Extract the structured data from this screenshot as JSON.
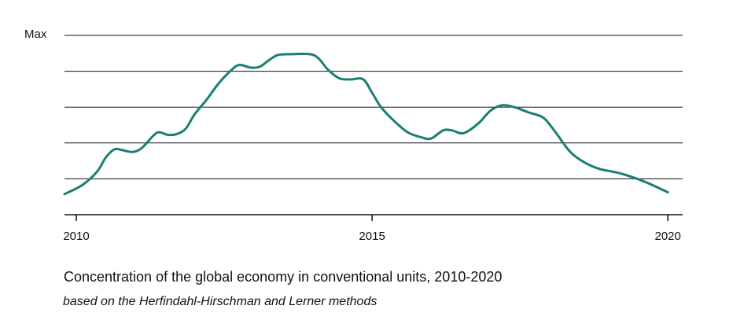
{
  "caption": {
    "title": "Concentration of the global economy in conventional units, 2010-2020",
    "subtitle": "based on the Herfindahl-Hirschman and Lerner methods"
  },
  "chart_data": {
    "type": "line",
    "title": "Concentration of the global economy in conventional units, 2010-2020",
    "subtitle": "based on the Herfindahl-Hirschman and Lerner methods",
    "xlabel": "",
    "ylabel": "",
    "xlim": [
      2009.8,
      2020.25
    ],
    "ylim": [
      0,
      100
    ],
    "x_ticks": [
      2010,
      2015,
      2020
    ],
    "x_tick_labels": [
      "2010",
      "2015",
      "2020"
    ],
    "y_ticks": [
      20,
      40,
      60,
      80,
      100
    ],
    "y_tick_labels": [
      "",
      "",
      "",
      "",
      "Max"
    ],
    "grid": "horizontal",
    "line_color": "#1a7f72",
    "series": [
      {
        "points": [
          [
            2009.8,
            11.5
          ],
          [
            2010.1,
            16.5
          ],
          [
            2010.35,
            24
          ],
          [
            2010.5,
            32
          ],
          [
            2010.65,
            36.5
          ],
          [
            2010.78,
            36
          ],
          [
            2010.95,
            35
          ],
          [
            2011.1,
            37
          ],
          [
            2011.3,
            44
          ],
          [
            2011.4,
            46
          ],
          [
            2011.55,
            44.5
          ],
          [
            2011.7,
            45
          ],
          [
            2011.85,
            48
          ],
          [
            2012.0,
            56
          ],
          [
            2012.2,
            64
          ],
          [
            2012.4,
            73
          ],
          [
            2012.6,
            80
          ],
          [
            2012.75,
            83.5
          ],
          [
            2012.95,
            82
          ],
          [
            2013.1,
            82.5
          ],
          [
            2013.25,
            86
          ],
          [
            2013.4,
            89
          ],
          [
            2013.6,
            89.5
          ],
          [
            2013.95,
            89.5
          ],
          [
            2014.1,
            87
          ],
          [
            2014.25,
            81
          ],
          [
            2014.45,
            76
          ],
          [
            2014.65,
            75.5
          ],
          [
            2014.85,
            75.5
          ],
          [
            2015.0,
            68
          ],
          [
            2015.15,
            60
          ],
          [
            2015.35,
            53
          ],
          [
            2015.6,
            46
          ],
          [
            2015.85,
            43
          ],
          [
            2016.0,
            42.5
          ],
          [
            2016.2,
            47
          ],
          [
            2016.35,
            47
          ],
          [
            2016.55,
            45.5
          ],
          [
            2016.8,
            51
          ],
          [
            2017.0,
            58
          ],
          [
            2017.2,
            61
          ],
          [
            2017.4,
            60
          ],
          [
            2017.65,
            57
          ],
          [
            2017.9,
            54
          ],
          [
            2018.1,
            46
          ],
          [
            2018.35,
            35
          ],
          [
            2018.6,
            29
          ],
          [
            2018.85,
            25.5
          ],
          [
            2019.2,
            23
          ],
          [
            2019.6,
            18.5
          ],
          [
            2020.0,
            12.5
          ]
        ]
      }
    ]
  }
}
